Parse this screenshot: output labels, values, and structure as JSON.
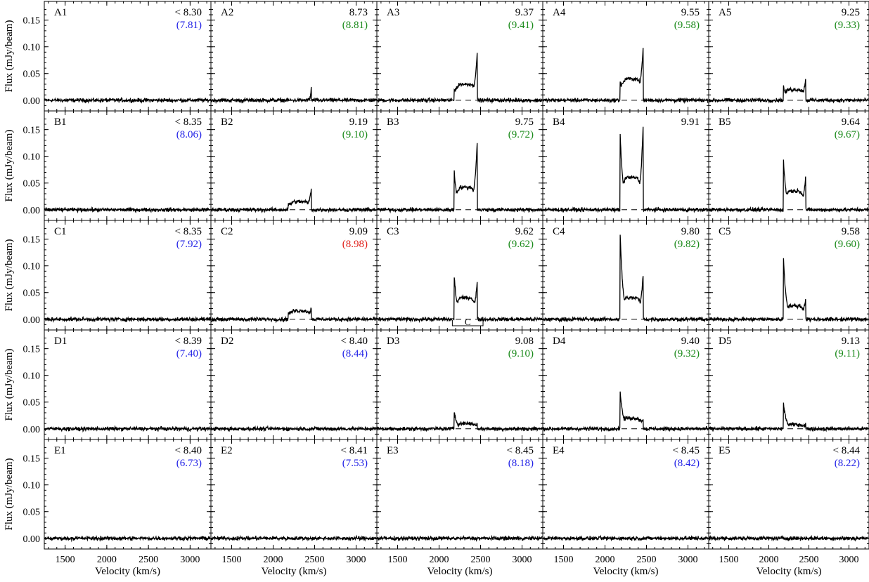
{
  "colors": {
    "line": "#000000",
    "blue": "#1f1fe6",
    "green": "#1a8a1a",
    "red": "#e0201a",
    "frame": "#000000"
  },
  "chart_data": {
    "type": "line",
    "xlabel": "Velocity (km/s)",
    "ylabel": "Flux (mJy/beam)",
    "xlim": [
      1250,
      3250
    ],
    "ylim": [
      -0.02,
      0.185
    ],
    "xticks": [
      1500,
      2000,
      2500,
      3000
    ],
    "xtick_labels": [
      "1500",
      "2000",
      "2500",
      "3000"
    ],
    "yticks": [
      0.0,
      0.05,
      0.1,
      0.15
    ],
    "ytick_labels": [
      "0.00",
      "0.05",
      "0.10",
      "0.15"
    ],
    "baseline": 0.0,
    "rows": [
      "A",
      "B",
      "C",
      "D",
      "E"
    ],
    "cols": [
      "1",
      "2",
      "3",
      "4",
      "5"
    ],
    "panels": [
      {
        "id": "A1",
        "label": "A1",
        "top_text": "< 8.30",
        "bottom_text": "(7.81)",
        "bottom_color": "blue",
        "profile": {
          "on": false
        }
      },
      {
        "id": "A2",
        "label": "A2",
        "top_text": "8.73",
        "bottom_text": "(8.81)",
        "bottom_color": "green",
        "profile": {
          "on": true,
          "v1": 2380,
          "v2": 2460,
          "horn_lo": 0.0,
          "horn_hi": 0.025,
          "mid": 0.0
        }
      },
      {
        "id": "A3",
        "label": "A3",
        "top_text": "9.37",
        "bottom_text": "(9.41)",
        "bottom_color": "green",
        "profile": {
          "on": true,
          "v1": 2180,
          "v2": 2460,
          "horn_lo": 0.02,
          "horn_hi": 0.09,
          "mid": 0.03
        }
      },
      {
        "id": "A4",
        "label": "A4",
        "top_text": "9.55",
        "bottom_text": "(9.58)",
        "bottom_color": "green",
        "profile": {
          "on": true,
          "v1": 2180,
          "v2": 2460,
          "horn_lo": 0.04,
          "horn_hi": 0.1,
          "mid": 0.04
        }
      },
      {
        "id": "A5",
        "label": "A5",
        "top_text": "9.25",
        "bottom_text": "(9.33)",
        "bottom_color": "green",
        "profile": {
          "on": true,
          "v1": 2180,
          "v2": 2460,
          "horn_lo": 0.028,
          "horn_hi": 0.04,
          "mid": 0.02
        }
      },
      {
        "id": "B1",
        "label": "B1",
        "top_text": "< 8.35",
        "bottom_text": "(8.06)",
        "bottom_color": "blue",
        "profile": {
          "on": false
        }
      },
      {
        "id": "B2",
        "label": "B2",
        "top_text": "9.19",
        "bottom_text": "(9.10)",
        "bottom_color": "green",
        "profile": {
          "on": true,
          "v1": 2180,
          "v2": 2460,
          "horn_lo": 0.005,
          "horn_hi": 0.038,
          "mid": 0.015
        }
      },
      {
        "id": "B3",
        "label": "B3",
        "top_text": "9.75",
        "bottom_text": "(9.72)",
        "bottom_color": "green",
        "profile": {
          "on": true,
          "v1": 2180,
          "v2": 2460,
          "horn_lo": 0.078,
          "horn_hi": 0.13,
          "mid": 0.042
        }
      },
      {
        "id": "B4",
        "label": "B4",
        "top_text": "9.91",
        "bottom_text": "",
        "bottom_color": "green",
        "profile": {
          "on": true,
          "v1": 2180,
          "v2": 2460,
          "horn_lo": 0.155,
          "horn_hi": 0.16,
          "mid": 0.06
        }
      },
      {
        "id": "B5",
        "label": "B5",
        "top_text": "9.64",
        "bottom_text": "(9.67)",
        "bottom_color": "green",
        "profile": {
          "on": true,
          "v1": 2180,
          "v2": 2460,
          "horn_lo": 0.1,
          "horn_hi": 0.063,
          "mid": 0.035
        }
      },
      {
        "id": "C1",
        "label": "C1",
        "top_text": "< 8.35",
        "bottom_text": "(7.92)",
        "bottom_color": "blue",
        "profile": {
          "on": false
        }
      },
      {
        "id": "C2",
        "label": "C2",
        "top_text": "9.09",
        "bottom_text": "(8.98)",
        "bottom_color": "red",
        "profile": {
          "on": true,
          "v1": 2180,
          "v2": 2460,
          "horn_lo": 0.015,
          "horn_hi": 0.022,
          "mid": 0.016
        }
      },
      {
        "id": "C3",
        "label": "C3",
        "top_text": "9.62",
        "bottom_text": "(9.62)",
        "bottom_color": "green",
        "profile": {
          "on": true,
          "v1": 2180,
          "v2": 2460,
          "horn_lo": 0.088,
          "horn_hi": 0.072,
          "mid": 0.04
        }
      },
      {
        "id": "C4",
        "label": "C4",
        "top_text": "9.80",
        "bottom_text": "(9.82)",
        "bottom_color": "green",
        "profile": {
          "on": true,
          "v1": 2180,
          "v2": 2460,
          "horn_lo": 0.175,
          "horn_hi": 0.085,
          "mid": 0.04
        }
      },
      {
        "id": "C5",
        "label": "C5",
        "top_text": "9.58",
        "bottom_text": "(9.60)",
        "bottom_color": "green",
        "profile": {
          "on": true,
          "v1": 2180,
          "v2": 2460,
          "horn_lo": 0.126,
          "horn_hi": 0.04,
          "mid": 0.025
        }
      },
      {
        "id": "D1",
        "label": "D1",
        "top_text": "< 8.39",
        "bottom_text": "(7.40)",
        "bottom_color": "blue",
        "profile": {
          "on": false
        }
      },
      {
        "id": "D2",
        "label": "D2",
        "top_text": "< 8.40",
        "bottom_text": "(8.44)",
        "bottom_color": "blue",
        "profile": {
          "on": false
        }
      },
      {
        "id": "D3",
        "label": "D3",
        "top_text": "9.08",
        "bottom_text": "(9.10)",
        "bottom_color": "green",
        "profile": {
          "on": true,
          "v1": 2180,
          "v2": 2460,
          "horn_lo": 0.035,
          "horn_hi": 0.01,
          "mid": 0.01
        }
      },
      {
        "id": "D4",
        "label": "D4",
        "top_text": "9.40",
        "bottom_text": "(9.32)",
        "bottom_color": "green",
        "profile": {
          "on": true,
          "v1": 2180,
          "v2": 2460,
          "horn_lo": 0.078,
          "horn_hi": 0.02,
          "mid": 0.02
        }
      },
      {
        "id": "D5",
        "label": "D5",
        "top_text": "9.13",
        "bottom_text": "(9.11)",
        "bottom_color": "green",
        "profile": {
          "on": true,
          "v1": 2180,
          "v2": 2460,
          "horn_lo": 0.053,
          "horn_hi": 0.008,
          "mid": 0.008
        }
      },
      {
        "id": "E1",
        "label": "E1",
        "top_text": "< 8.40",
        "bottom_text": "(6.73)",
        "bottom_color": "blue",
        "profile": {
          "on": false
        }
      },
      {
        "id": "E2",
        "label": "E2",
        "top_text": "< 8.41",
        "bottom_text": "(7.53)",
        "bottom_color": "blue",
        "profile": {
          "on": false
        }
      },
      {
        "id": "E3",
        "label": "E3",
        "top_text": "< 8.45",
        "bottom_text": "(8.18)",
        "bottom_color": "blue",
        "profile": {
          "on": false
        }
      },
      {
        "id": "E4",
        "label": "E4",
        "top_text": "< 8.45",
        "bottom_text": "(8.42)",
        "bottom_color": "blue",
        "profile": {
          "on": false
        }
      },
      {
        "id": "E5",
        "label": "E5",
        "top_text": "< 8.44",
        "bottom_text": "(8.22)",
        "bottom_color": "blue",
        "profile": {
          "on": false
        }
      }
    ],
    "annotations": [
      {
        "panel": "C3",
        "text": "C",
        "v1": 2160,
        "v2": 2530
      }
    ]
  }
}
